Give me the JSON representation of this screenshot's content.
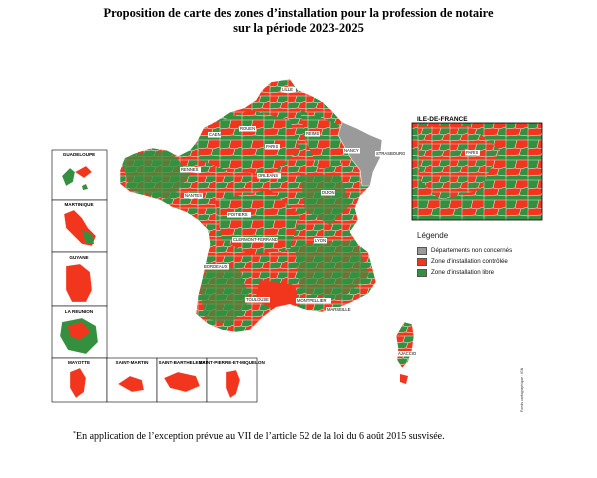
{
  "title": {
    "line1": "Proposition de carte des zones d’installation pour la profession de notaire",
    "line2": "sur la période 2023-2025"
  },
  "colors": {
    "controlled": "#f2361e",
    "free": "#34903f",
    "not_concerned": "#9a9a9a",
    "border": "#ffffff"
  },
  "cities": [
    "LILLE",
    "ROUEN",
    "CAEN",
    "REIMS",
    "PARIS",
    "NANCY",
    "STRASBOURG",
    "RENNES",
    "ORLEANS",
    "NANTES",
    "DIJON",
    "POITIERS",
    "LYON",
    "CLERMONT-FERRAND",
    "BORDEAUX",
    "TOULOUSE",
    "MONTPELLIER",
    "MARSEILLE",
    "AJACCIO"
  ],
  "overseas": {
    "guadeloupe": "GUADELOUPE",
    "martinique": "MARTINIQUE",
    "guyane": "GUYANE",
    "la_reunion": "LA REUNION",
    "mayotte": "MAYOTTE",
    "saint_martin": "SAINT-MARTIN",
    "saint_barthelemy": "SAINT-BARTHELEMY",
    "saint_pierre": "SAINT-PIERRE-ET-MIQUELON"
  },
  "idf": {
    "title": "ILE-DE-FRANCE",
    "city": "PARIS"
  },
  "legend": {
    "title": "Légende",
    "items": [
      {
        "label": "Départements non concernés",
        "color": "#9a9a9a"
      },
      {
        "label": "Zone d'installation contrôlée",
        "color": "#f2361e"
      },
      {
        "label": "Zone d'installation libre",
        "color": "#34903f"
      }
    ]
  },
  "source": "Fonds cartographique : IGN",
  "footnote": {
    "mark": "*",
    "text": "En application de l’exception prévue au VII de l’article 52 de la loi du 6 août 2015 susvisée."
  }
}
